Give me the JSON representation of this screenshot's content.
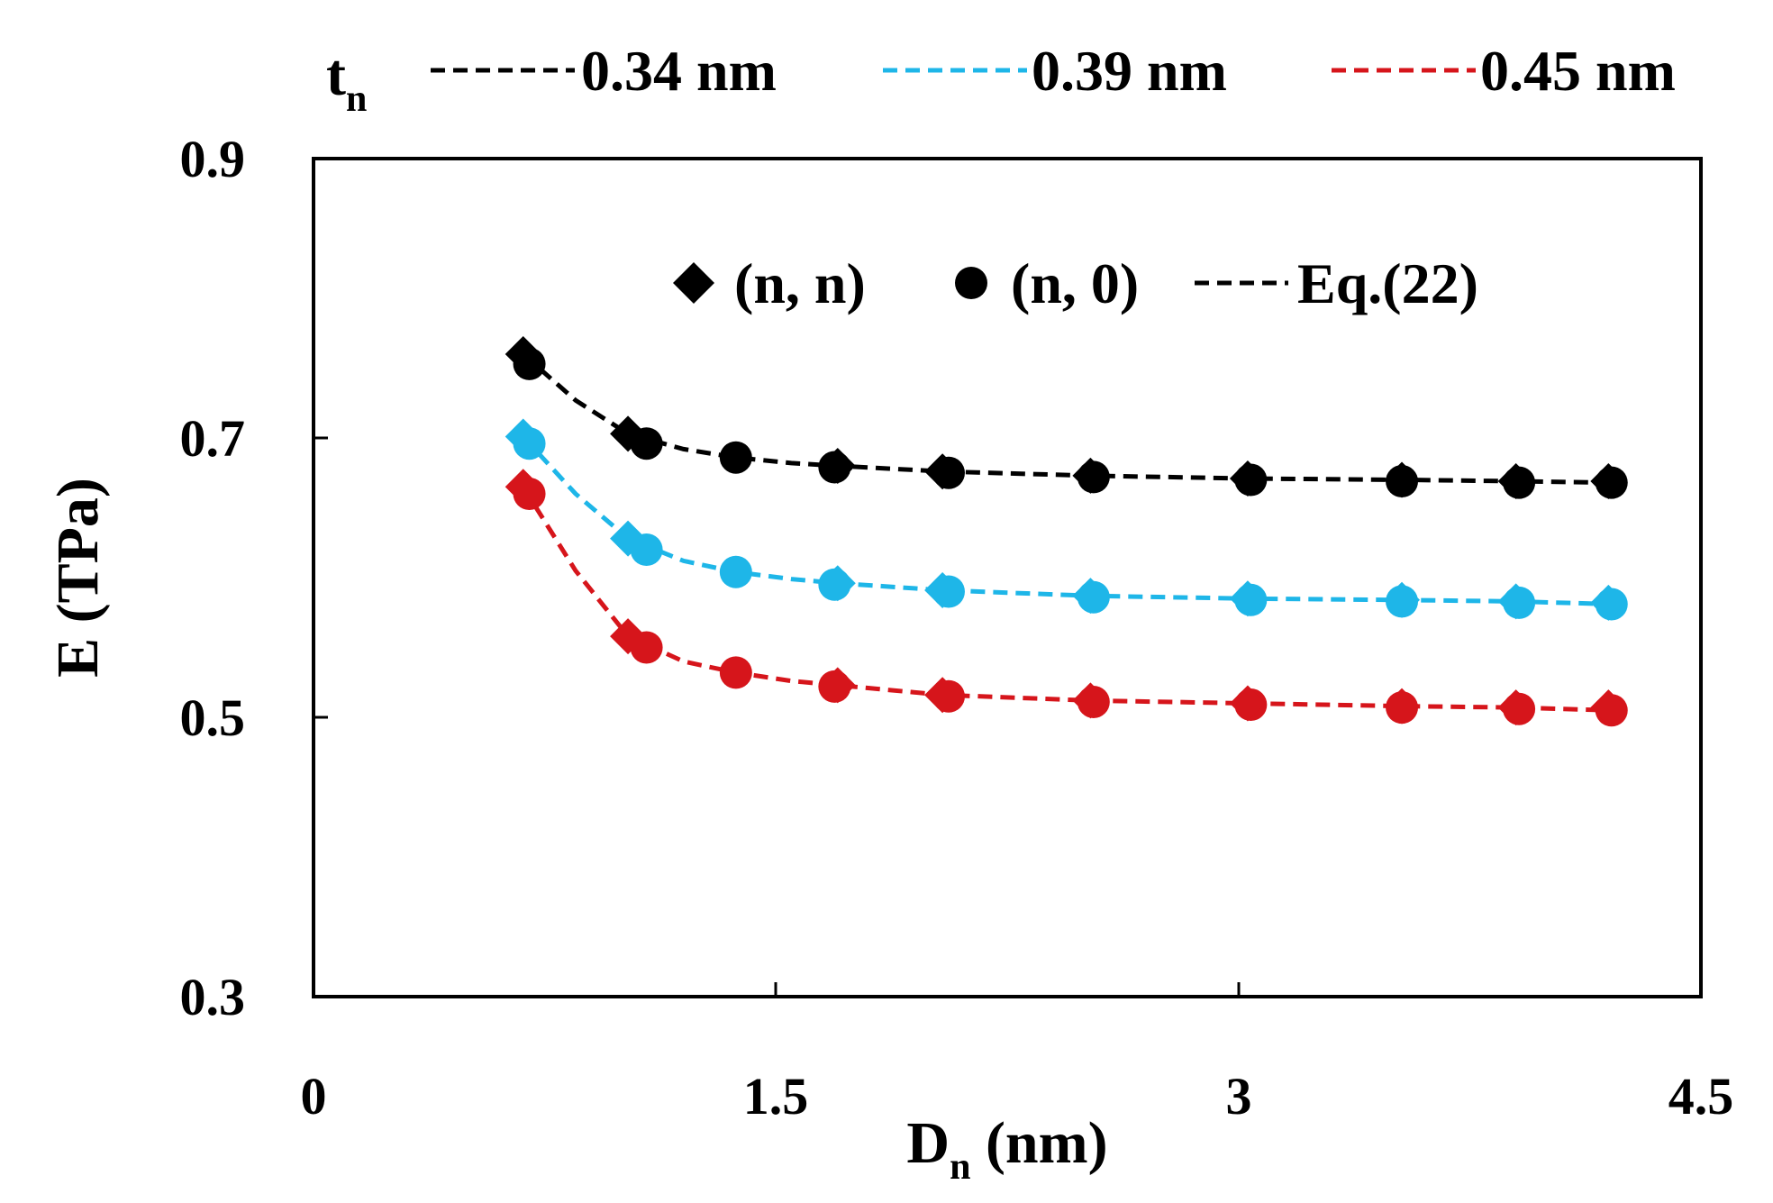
{
  "chart_data": {
    "type": "line",
    "title": "",
    "xlabel": {
      "main": "D",
      "sub": "n",
      "rest": " (nm)"
    },
    "ylabel": "E (TPa)",
    "xlim": [
      0,
      4.5
    ],
    "ylim": [
      0.3,
      0.9
    ],
    "xticks": [
      0,
      1.5,
      3,
      4.5
    ],
    "xtick_labels": [
      "0",
      "1.5",
      "3",
      "4.5"
    ],
    "yticks": [
      0.3,
      0.5,
      0.7,
      0.9
    ],
    "ytick_labels": [
      "0.3",
      "0.5",
      "0.7",
      "0.9"
    ],
    "grid": false,
    "thickness_legend": {
      "label_main": "t",
      "label_sub": "n",
      "entries": [
        {
          "name": "0.34 nm",
          "color": "#000000"
        },
        {
          "name": "0.39 nm",
          "color": "#1EB6E8"
        },
        {
          "name": "0.45 nm",
          "color": "#D6151B"
        }
      ]
    },
    "marker_legend": {
      "entries": [
        {
          "marker": "diamond",
          "label": "(n, n)"
        },
        {
          "marker": "circle",
          "label": "(n, 0)"
        },
        {
          "marker": "dash",
          "label": "Eq.(22)"
        }
      ]
    },
    "series": [
      {
        "name": "0.34 nm",
        "color": "#000000",
        "armchair": {
          "x": [
            0.68,
            1.02,
            1.7,
            2.04,
            2.52,
            3.03,
            3.53,
            3.9,
            4.2
          ],
          "y": [
            0.76,
            0.703,
            0.68,
            0.676,
            0.673,
            0.671,
            0.67,
            0.669,
            0.669
          ]
        },
        "zigzag": {
          "x": [
            0.7,
            1.08,
            1.37,
            1.69,
            2.06,
            2.53,
            3.04,
            3.53,
            3.91,
            4.21
          ],
          "y": [
            0.753,
            0.696,
            0.686,
            0.679,
            0.675,
            0.672,
            0.67,
            0.669,
            0.668,
            0.668
          ]
        },
        "eq22": {
          "x": [
            0.68,
            0.85,
            1.02,
            1.2,
            1.37,
            1.55,
            1.7,
            2.04,
            2.52,
            3.03,
            3.53,
            3.9,
            4.21
          ],
          "y": [
            0.76,
            0.727,
            0.703,
            0.692,
            0.686,
            0.682,
            0.68,
            0.676,
            0.673,
            0.671,
            0.67,
            0.669,
            0.668
          ]
        }
      },
      {
        "name": "0.39 nm",
        "color": "#1EB6E8",
        "armchair": {
          "x": [
            0.68,
            1.02,
            1.7,
            2.04,
            2.52,
            3.03,
            3.53,
            3.9,
            4.2
          ],
          "y": [
            0.701,
            0.628,
            0.596,
            0.591,
            0.587,
            0.585,
            0.584,
            0.583,
            0.582
          ]
        },
        "zigzag": {
          "x": [
            0.7,
            1.08,
            1.37,
            1.69,
            2.06,
            2.53,
            3.04,
            3.53,
            3.91,
            4.21
          ],
          "y": [
            0.696,
            0.62,
            0.604,
            0.595,
            0.59,
            0.586,
            0.584,
            0.583,
            0.582,
            0.581
          ]
        },
        "eq22": {
          "x": [
            0.68,
            0.85,
            1.02,
            1.2,
            1.37,
            1.55,
            1.7,
            2.04,
            2.52,
            3.03,
            3.53,
            3.9,
            4.21
          ],
          "y": [
            0.701,
            0.66,
            0.628,
            0.612,
            0.604,
            0.599,
            0.596,
            0.591,
            0.587,
            0.585,
            0.584,
            0.583,
            0.581
          ]
        }
      },
      {
        "name": "0.45 nm",
        "color": "#D6151B",
        "armchair": {
          "x": [
            0.68,
            1.02,
            1.7,
            2.04,
            2.52,
            3.03,
            3.53,
            3.9,
            4.2
          ],
          "y": [
            0.665,
            0.558,
            0.523,
            0.516,
            0.512,
            0.51,
            0.508,
            0.507,
            0.507
          ]
        },
        "zigzag": {
          "x": [
            0.7,
            1.08,
            1.37,
            1.69,
            2.06,
            2.53,
            3.04,
            3.53,
            3.91,
            4.21
          ],
          "y": [
            0.66,
            0.55,
            0.532,
            0.522,
            0.515,
            0.511,
            0.509,
            0.507,
            0.506,
            0.505
          ]
        },
        "eq22": {
          "x": [
            0.68,
            0.85,
            1.02,
            1.2,
            1.37,
            1.55,
            1.7,
            2.04,
            2.52,
            3.03,
            3.53,
            3.9,
            4.21
          ],
          "y": [
            0.665,
            0.605,
            0.558,
            0.54,
            0.532,
            0.526,
            0.523,
            0.516,
            0.512,
            0.51,
            0.508,
            0.507,
            0.505
          ]
        }
      }
    ]
  }
}
